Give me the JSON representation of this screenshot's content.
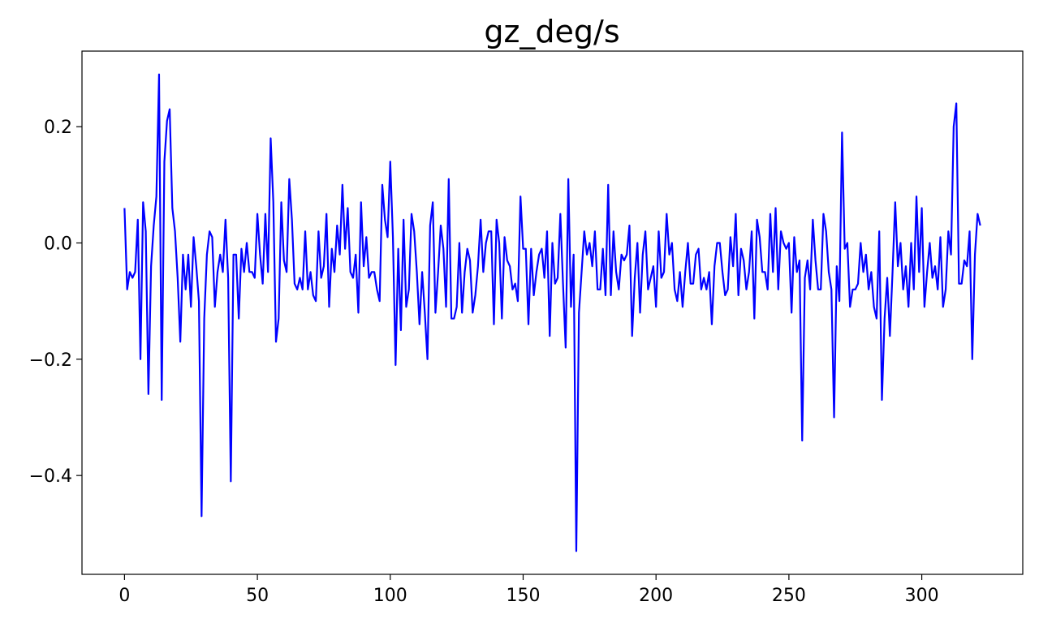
{
  "chart_data": {
    "type": "line",
    "title": "gz_deg/s",
    "xlabel": "",
    "ylabel": "",
    "xlim": [
      -16,
      338
    ],
    "ylim": [
      -0.57,
      0.33
    ],
    "x_ticks": [
      0,
      50,
      100,
      150,
      200,
      250,
      300
    ],
    "x_tick_labels": [
      "0",
      "50",
      "100",
      "150",
      "200",
      "250",
      "300"
    ],
    "y_ticks": [
      -0.4,
      -0.2,
      0.0,
      0.2
    ],
    "y_tick_labels": [
      "−0.4",
      "−0.2",
      "0.0",
      "0.2"
    ],
    "grid": false,
    "series": [
      {
        "color": "#0000ff",
        "x_start": 0,
        "x_step": 1,
        "values": [
          0.06,
          -0.08,
          -0.05,
          -0.06,
          -0.05,
          0.04,
          -0.2,
          0.07,
          0.02,
          -0.26,
          -0.04,
          0.03,
          0.08,
          0.29,
          -0.27,
          0.14,
          0.21,
          0.23,
          0.06,
          0.02,
          -0.06,
          -0.17,
          -0.02,
          -0.08,
          -0.02,
          -0.11,
          0.01,
          -0.04,
          -0.1,
          -0.47,
          -0.13,
          -0.02,
          0.02,
          0.01,
          -0.11,
          -0.05,
          -0.02,
          -0.05,
          0.04,
          -0.06,
          -0.41,
          -0.02,
          -0.02,
          -0.13,
          -0.01,
          -0.05,
          0.0,
          -0.05,
          -0.05,
          -0.06,
          0.05,
          -0.02,
          -0.07,
          0.05,
          -0.05,
          0.18,
          0.07,
          -0.17,
          -0.13,
          0.07,
          -0.03,
          -0.05,
          0.11,
          0.04,
          -0.07,
          -0.08,
          -0.06,
          -0.08,
          0.02,
          -0.08,
          -0.05,
          -0.09,
          -0.1,
          0.02,
          -0.06,
          -0.04,
          0.05,
          -0.11,
          -0.01,
          -0.05,
          0.03,
          -0.02,
          0.1,
          -0.01,
          0.06,
          -0.05,
          -0.06,
          -0.02,
          -0.12,
          0.07,
          -0.04,
          0.01,
          -0.06,
          -0.05,
          -0.05,
          -0.08,
          -0.1,
          0.1,
          0.04,
          0.01,
          0.14,
          0.01,
          -0.21,
          -0.01,
          -0.15,
          0.04,
          -0.11,
          -0.08,
          0.05,
          0.02,
          -0.05,
          -0.14,
          -0.05,
          -0.12,
          -0.2,
          0.03,
          0.07,
          -0.12,
          -0.05,
          0.03,
          -0.01,
          -0.11,
          0.11,
          -0.13,
          -0.13,
          -0.11,
          0.0,
          -0.12,
          -0.05,
          -0.01,
          -0.03,
          -0.12,
          -0.09,
          -0.04,
          0.04,
          -0.05,
          0.0,
          0.02,
          0.02,
          -0.14,
          0.04,
          0.0,
          -0.13,
          0.01,
          -0.03,
          -0.04,
          -0.08,
          -0.07,
          -0.1,
          0.08,
          -0.01,
          -0.01,
          -0.14,
          -0.01,
          -0.09,
          -0.05,
          -0.02,
          -0.01,
          -0.06,
          0.02,
          -0.16,
          0.0,
          -0.07,
          -0.06,
          0.05,
          -0.07,
          -0.18,
          0.11,
          -0.11,
          -0.02,
          -0.53,
          -0.12,
          -0.05,
          0.02,
          -0.02,
          0.0,
          -0.04,
          0.02,
          -0.08,
          -0.08,
          -0.01,
          -0.09,
          0.1,
          -0.09,
          0.02,
          -0.05,
          -0.08,
          -0.02,
          -0.03,
          -0.02,
          0.03,
          -0.16,
          -0.06,
          0.0,
          -0.12,
          -0.02,
          0.02,
          -0.08,
          -0.06,
          -0.04,
          -0.11,
          0.02,
          -0.06,
          -0.05,
          0.05,
          -0.02,
          0.0,
          -0.08,
          -0.1,
          -0.05,
          -0.11,
          -0.05,
          0.0,
          -0.07,
          -0.07,
          -0.02,
          -0.01,
          -0.08,
          -0.06,
          -0.08,
          -0.05,
          -0.14,
          -0.04,
          0.0,
          0.0,
          -0.05,
          -0.09,
          -0.08,
          0.01,
          -0.04,
          0.05,
          -0.09,
          -0.01,
          -0.03,
          -0.08,
          -0.05,
          0.02,
          -0.13,
          0.04,
          0.01,
          -0.05,
          -0.05,
          -0.08,
          0.05,
          -0.05,
          0.06,
          -0.08,
          0.02,
          0.0,
          -0.01,
          0.0,
          -0.12,
          0.01,
          -0.05,
          -0.03,
          -0.34,
          -0.06,
          -0.03,
          -0.08,
          0.04,
          -0.03,
          -0.08,
          -0.08,
          0.05,
          0.02,
          -0.05,
          -0.08,
          -0.3,
          -0.04,
          -0.1,
          0.19,
          -0.01,
          0.0,
          -0.11,
          -0.08,
          -0.08,
          -0.07,
          0.0,
          -0.05,
          -0.02,
          -0.08,
          -0.05,
          -0.11,
          -0.13,
          0.02,
          -0.27,
          -0.13,
          -0.06,
          -0.16,
          -0.05,
          0.07,
          -0.04,
          0.0,
          -0.08,
          -0.04,
          -0.11,
          0.0,
          -0.08,
          0.08,
          -0.05,
          0.06,
          -0.11,
          -0.05,
          0.0,
          -0.06,
          -0.04,
          -0.08,
          0.01,
          -0.11,
          -0.08,
          0.02,
          -0.02,
          0.2,
          0.24,
          -0.07,
          -0.07,
          -0.03,
          -0.04,
          0.02,
          -0.2,
          -0.02,
          0.05,
          0.03
        ]
      }
    ]
  }
}
